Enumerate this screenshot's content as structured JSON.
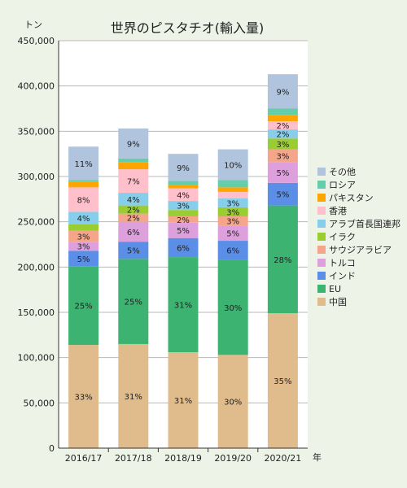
{
  "chart_data": {
    "type": "bar",
    "stacked": true,
    "title": "世界のピスタチオ(輸入量)",
    "ylabel": "トン",
    "xlabel": "年",
    "categories": [
      "2016/17",
      "2017/18",
      "2018/19",
      "2019/20",
      "2020/21"
    ],
    "ylim": [
      0,
      450000
    ],
    "yticks": [
      0,
      50000,
      100000,
      150000,
      200000,
      250000,
      300000,
      350000,
      400000,
      450000
    ],
    "ytick_labels": [
      "0",
      "50,000",
      "100,000",
      "150,000",
      "200,000",
      "250,000",
      "300,000",
      "350,000",
      "400,000",
      "450,000"
    ],
    "grid": true,
    "legend_position": "right",
    "series": [
      {
        "name": "中国",
        "color": "#e0bb8c",
        "values": [
          114000,
          115000,
          106000,
          103000,
          149000
        ],
        "labels": [
          "33%",
          "31%",
          "31%",
          "30%",
          "35%"
        ]
      },
      {
        "name": "EU",
        "color": "#3cb371",
        "values": [
          87000,
          94000,
          105000,
          105000,
          119000
        ],
        "labels": [
          "25%",
          "25%",
          "31%",
          "30%",
          "28%"
        ]
      },
      {
        "name": "インド",
        "color": "#5b8ee6",
        "values": [
          17000,
          19000,
          21000,
          21000,
          25000
        ],
        "labels": [
          "5%",
          "5%",
          "6%",
          "6%",
          "5%"
        ]
      },
      {
        "name": "トルコ",
        "color": "#dda0dd",
        "values": [
          10000,
          22000,
          17000,
          17000,
          23000
        ],
        "labels": [
          "3%",
          "6%",
          "5%",
          "5%",
          "5%"
        ]
      },
      {
        "name": "サウジアラビア",
        "color": "#f5a58a",
        "values": [
          12000,
          9000,
          7000,
          10000,
          14000
        ],
        "labels": [
          "3%",
          "2%",
          "2%",
          "3%",
          "3%"
        ]
      },
      {
        "name": "イラク",
        "color": "#9acd32",
        "values": [
          7000,
          9000,
          7000,
          10000,
          12000
        ],
        "labels": [
          "",
          "2%",
          "",
          "3%",
          "3%"
        ]
      },
      {
        "name": "アラブ首長国連邦",
        "color": "#87ceeb",
        "values": [
          14000,
          14000,
          10000,
          10000,
          10000
        ],
        "labels": [
          "4%",
          "4%",
          "3%",
          "3%",
          "2%"
        ]
      },
      {
        "name": "香港",
        "color": "#ffc0cb",
        "values": [
          27000,
          26000,
          14000,
          7000,
          9000
        ],
        "labels": [
          "8%",
          "7%",
          "4%",
          "",
          "2%"
        ]
      },
      {
        "name": "パキスタン",
        "color": "#ffa500",
        "values": [
          6000,
          8000,
          4000,
          5000,
          7000
        ],
        "labels": [
          "",
          "",
          "",
          "",
          ""
        ]
      },
      {
        "name": "ロシア",
        "color": "#66cdaa",
        "values": [
          2000,
          4000,
          4000,
          8000,
          7000
        ],
        "labels": [
          "",
          "",
          "",
          "",
          ""
        ]
      },
      {
        "name": "その他",
        "color": "#b0c4de",
        "values": [
          37000,
          33000,
          30000,
          34000,
          38000
        ],
        "labels": [
          "11%",
          "9%",
          "9%",
          "10%",
          "9%"
        ]
      }
    ]
  }
}
